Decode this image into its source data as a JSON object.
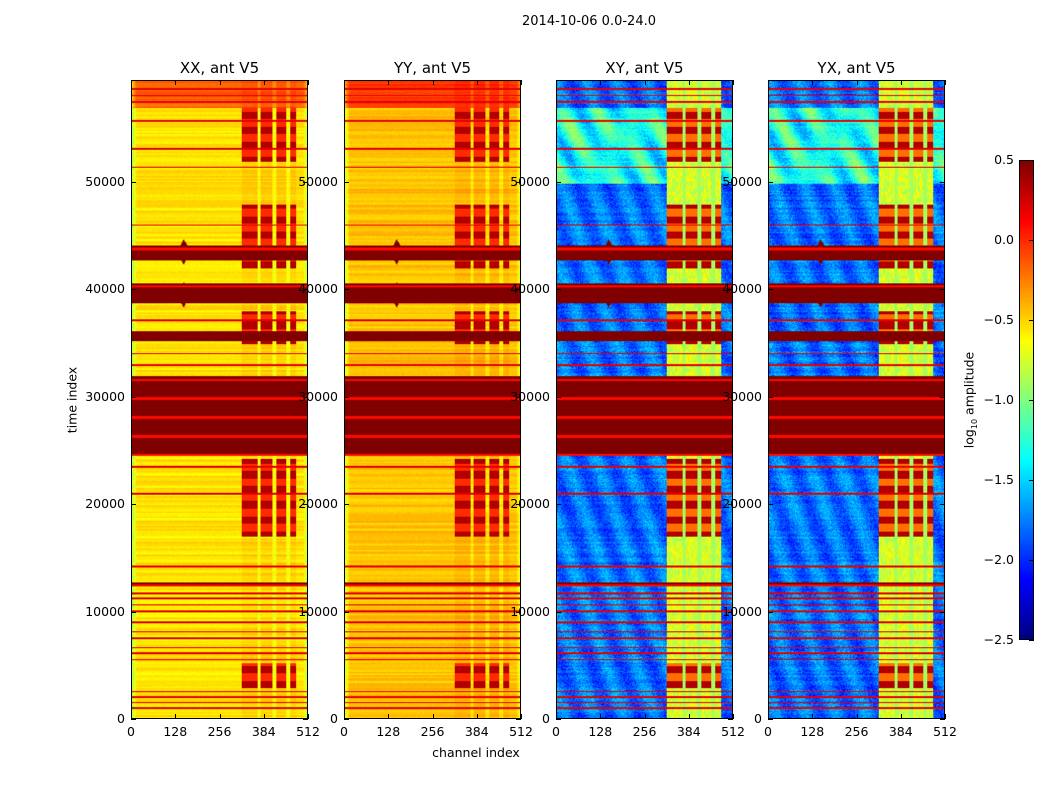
{
  "figure": {
    "suptitle": "2014-10-06 0.0-24.0",
    "xlabel": "channel index",
    "ylabel": "time index"
  },
  "chart_data": {
    "type": "heatmap",
    "xlim": [
      0,
      512
    ],
    "ylim": [
      0,
      59500
    ],
    "xticks": [
      0,
      128,
      256,
      384,
      512
    ],
    "xticklabels": [
      "0",
      "128",
      "256",
      "384",
      "512"
    ],
    "yticks": [
      0,
      10000,
      20000,
      30000,
      40000,
      50000
    ],
    "yticklabels": [
      "0",
      "10000",
      "20000",
      "30000",
      "40000",
      "50000"
    ],
    "panels": [
      {
        "title": "XX, ant V5",
        "kind": "parallel",
        "base": -0.55
      },
      {
        "title": "YY, ant V5",
        "kind": "parallel",
        "base": -0.45
      },
      {
        "title": "XY, ant V5",
        "kind": "cross",
        "base": -1.8
      },
      {
        "title": "YX, ant V5",
        "kind": "cross",
        "base": -1.8
      }
    ],
    "saturated_time_bands": [
      [
        24500,
        32000
      ],
      [
        35200,
        36200
      ],
      [
        38800,
        40600
      ],
      [
        42800,
        44200
      ],
      [
        12300,
        12700
      ]
    ],
    "flagged_time_lines": [
      1000,
      1500,
      2000,
      2500,
      5500,
      6100,
      6600,
      7500,
      8100,
      9000,
      10000,
      10600,
      11200,
      11700,
      14200,
      21000,
      23500,
      33000,
      34100,
      37200,
      46100,
      51500,
      53200,
      55800,
      57600,
      58200,
      58800
    ],
    "source_channel": 150,
    "source_times": [
      43600,
      39600
    ],
    "active_channel_range": [
      320,
      480
    ],
    "active_time_blocks": [
      [
        2800,
        5200
      ],
      [
        17000,
        24300
      ],
      [
        35000,
        38000
      ],
      [
        42000,
        48000
      ],
      [
        52000,
        57000
      ]
    ],
    "colorbar": {
      "label_main": "log",
      "label_sub": "10",
      "label_rest": " amplitude",
      "colormap": "jet",
      "vmin": -2.5,
      "vmax": 0.5,
      "ticks": [
        0.5,
        0.0,
        -0.5,
        -1.0,
        -1.5,
        -2.0,
        -2.5
      ],
      "ticklabels": [
        "0.5",
        "0.0",
        "−0.5",
        "−1.0",
        "−1.5",
        "−2.0",
        "−2.5"
      ]
    }
  }
}
